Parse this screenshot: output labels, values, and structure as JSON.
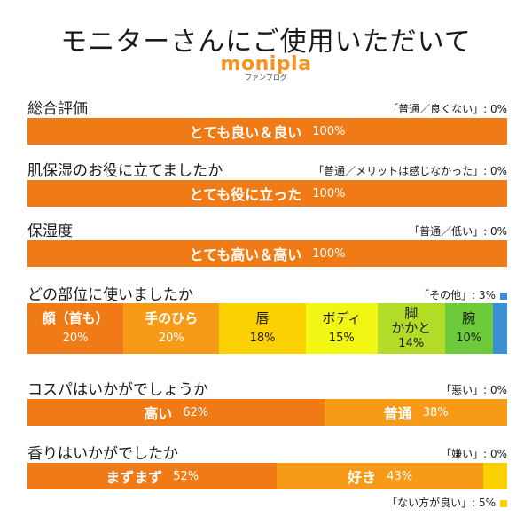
{
  "title": "モニターさんにご使用いただいて",
  "logo": {
    "main": "monipla",
    "sub": "ファンブログ"
  },
  "chart_data": [
    {
      "type": "bar",
      "question": "総合評価",
      "note": "「普通／良くない」: 0%",
      "segments": [
        {
          "label": "とても良い＆良い",
          "value": 100,
          "pct_label": "100%",
          "color": "#f07b16"
        }
      ]
    },
    {
      "type": "bar",
      "question": "肌保湿のお役に立てましたか",
      "note": "「普通／メリットは感じなかった」: 0%",
      "segments": [
        {
          "label": "とても役に立った",
          "value": 100,
          "pct_label": "100%",
          "color": "#f07b16"
        }
      ]
    },
    {
      "type": "bar",
      "question": "保湿度",
      "note": "「普通／低い」: 0%",
      "segments": [
        {
          "label": "とても高い＆高い",
          "value": 100,
          "pct_label": "100%",
          "color": "#f07b16"
        }
      ]
    },
    {
      "type": "bar",
      "question": "どの部位に使いましたか",
      "note": "「その他」: 3%",
      "note_color": "#3b8fd4",
      "segments": [
        {
          "label": "顔（首も）",
          "value": 20,
          "pct_label": "20%",
          "color": "#f07b16"
        },
        {
          "label": "手のひら",
          "value": 20,
          "pct_label": "20%",
          "color": "#f79a18"
        },
        {
          "label": "唇",
          "value": 18,
          "pct_label": "18%",
          "color": "#fbd102"
        },
        {
          "label": "ボディ",
          "value": 15,
          "pct_label": "15%",
          "color": "#f2f614"
        },
        {
          "label": "脚\nかかと",
          "value": 14,
          "pct_label": "14%",
          "color": "#b3dc29"
        },
        {
          "label": "腕",
          "value": 10,
          "pct_label": "10%",
          "color": "#6dcb3b"
        },
        {
          "label": "",
          "value": 3,
          "pct_label": "",
          "color": "#3b8fd4"
        }
      ]
    },
    {
      "type": "bar",
      "question": "コスパはいかがでしょうか",
      "note": "「悪い」: 0%",
      "segments": [
        {
          "label": "高い",
          "value": 62,
          "pct_label": "62%",
          "color": "#f07b16"
        },
        {
          "label": "普通",
          "value": 38,
          "pct_label": "38%",
          "color": "#f79a18"
        }
      ]
    },
    {
      "type": "bar",
      "question": "香りはいかがでしたか",
      "note": "「嫌い」: 0%",
      "note2": "「ない方が良い」: 5%",
      "note2_color": "#fbd102",
      "segments": [
        {
          "label": "まずまず",
          "value": 52,
          "pct_label": "52%",
          "color": "#f07b16"
        },
        {
          "label": "好き",
          "value": 43,
          "pct_label": "43%",
          "color": "#f79a18"
        },
        {
          "label": "",
          "value": 5,
          "pct_label": "",
          "color": "#fbd102"
        }
      ]
    }
  ]
}
